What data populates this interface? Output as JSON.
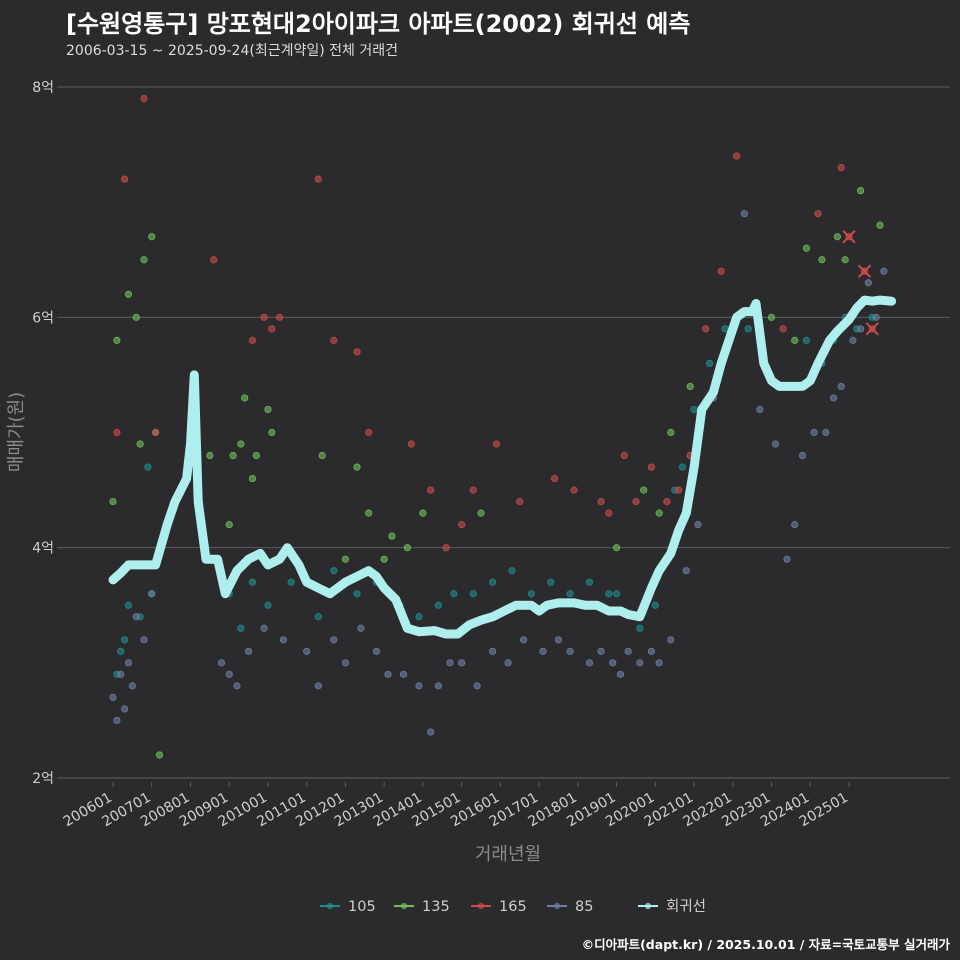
{
  "title": "[수원영통구] 망포현대2아이파크 아파트(2002) 회귀선 예측",
  "subtitle": "2006-03-15 ~ 2025-09-24(최근계약일) 전체 거래건",
  "caption": "©디아파트(dapt.kr) / 2025.10.01 / 자료=국토교통부 실거래가",
  "colors": {
    "background": "#2b2b2d",
    "grid": "#5d5d60",
    "s105": "#1f8d8d",
    "s135": "#6fbf5a",
    "s165": "#cc4b4b",
    "s85": "#6e7fa3",
    "regression": "#aeeeed"
  },
  "chart_data": {
    "type": "scatter",
    "xlabel": "거래년월",
    "ylabel": "매매가(원)",
    "ylim": [
      2,
      8
    ],
    "y_ticks": [
      {
        "value": 2,
        "label": "2억"
      },
      {
        "value": 4,
        "label": "4억"
      },
      {
        "value": 6,
        "label": "6억"
      },
      {
        "value": 8,
        "label": "8억"
      }
    ],
    "x_ticks": [
      "200601",
      "200701",
      "200801",
      "200901",
      "201001",
      "201101",
      "201201",
      "201301",
      "201401",
      "201501",
      "201601",
      "201701",
      "201801",
      "201901",
      "202001",
      "202101",
      "202201",
      "202301",
      "202401",
      "202501"
    ],
    "xlim": [
      2005.2,
      2026.8
    ],
    "legend": {
      "position": "bottom",
      "items": [
        {
          "label": "105",
          "color_key": "s105"
        },
        {
          "label": "135",
          "color_key": "s135"
        },
        {
          "label": "165",
          "color_key": "s165"
        },
        {
          "label": "85",
          "color_key": "s85"
        },
        {
          "label": "회귀선",
          "color_key": "regression"
        }
      ]
    },
    "series": [
      {
        "name": "105",
        "color_key": "s105",
        "points": [
          [
            2006.1,
            2.9
          ],
          [
            2006.2,
            3.1
          ],
          [
            2006.3,
            3.2
          ],
          [
            2006.4,
            3.5
          ],
          [
            2006.7,
            3.4
          ],
          [
            2006.9,
            4.7
          ],
          [
            2007.0,
            3.6
          ],
          [
            2009.0,
            3.6
          ],
          [
            2009.3,
            3.3
          ],
          [
            2009.6,
            3.7
          ],
          [
            2010.0,
            3.5
          ],
          [
            2010.6,
            3.7
          ],
          [
            2011.3,
            3.4
          ],
          [
            2011.7,
            3.8
          ],
          [
            2012.3,
            3.6
          ],
          [
            2012.8,
            3.7
          ],
          [
            2013.4,
            3.5
          ],
          [
            2013.9,
            3.4
          ],
          [
            2014.4,
            3.5
          ],
          [
            2014.8,
            3.6
          ],
          [
            2015.3,
            3.6
          ],
          [
            2015.8,
            3.7
          ],
          [
            2016.3,
            3.8
          ],
          [
            2016.8,
            3.6
          ],
          [
            2017.3,
            3.7
          ],
          [
            2017.8,
            3.6
          ],
          [
            2018.3,
            3.7
          ],
          [
            2018.8,
            3.6
          ],
          [
            2019.0,
            3.6
          ],
          [
            2019.6,
            3.3
          ],
          [
            2020.0,
            3.5
          ],
          [
            2020.1,
            3.8
          ],
          [
            2020.5,
            4.5
          ],
          [
            2020.7,
            4.7
          ],
          [
            2021.0,
            5.2
          ],
          [
            2021.4,
            5.6
          ],
          [
            2021.8,
            5.9
          ],
          [
            2022.4,
            5.9
          ],
          [
            2023.5,
            5.4
          ],
          [
            2023.9,
            5.8
          ],
          [
            2024.3,
            5.6
          ],
          [
            2024.6,
            5.8
          ],
          [
            2024.9,
            6.0
          ],
          [
            2025.2,
            5.9
          ],
          [
            2025.6,
            6.0
          ]
        ]
      },
      {
        "name": "135",
        "color_key": "s135",
        "points": [
          [
            2006.0,
            4.4
          ],
          [
            2006.1,
            5.8
          ],
          [
            2006.4,
            6.2
          ],
          [
            2006.6,
            6.0
          ],
          [
            2006.7,
            4.9
          ],
          [
            2006.8,
            6.5
          ],
          [
            2007.0,
            6.7
          ],
          [
            2007.1,
            5.0
          ],
          [
            2007.2,
            2.2
          ],
          [
            2008.5,
            4.8
          ],
          [
            2009.0,
            4.2
          ],
          [
            2009.1,
            4.8
          ],
          [
            2009.3,
            4.9
          ],
          [
            2009.4,
            5.3
          ],
          [
            2009.6,
            4.6
          ],
          [
            2009.7,
            4.8
          ],
          [
            2010.0,
            5.2
          ],
          [
            2010.1,
            5.0
          ],
          [
            2011.4,
            4.8
          ],
          [
            2012.0,
            3.9
          ],
          [
            2012.3,
            4.7
          ],
          [
            2012.6,
            4.3
          ],
          [
            2013.0,
            3.9
          ],
          [
            2013.2,
            4.1
          ],
          [
            2013.6,
            4.0
          ],
          [
            2014.0,
            4.3
          ],
          [
            2015.5,
            4.3
          ],
          [
            2019.0,
            4.0
          ],
          [
            2019.7,
            4.5
          ],
          [
            2020.1,
            4.3
          ],
          [
            2020.4,
            5.0
          ],
          [
            2020.9,
            5.4
          ],
          [
            2021.7,
            5.6
          ],
          [
            2023.0,
            6.0
          ],
          [
            2023.6,
            5.8
          ],
          [
            2023.9,
            6.6
          ],
          [
            2024.3,
            6.5
          ],
          [
            2024.7,
            6.7
          ],
          [
            2024.9,
            6.5
          ],
          [
            2025.3,
            7.1
          ],
          [
            2025.8,
            6.8
          ]
        ]
      },
      {
        "name": "165",
        "color_key": "s165",
        "points": [
          [
            2006.3,
            7.2
          ],
          [
            2006.1,
            5.0
          ],
          [
            2006.8,
            7.9
          ],
          [
            2007.1,
            5.0
          ],
          [
            2008.6,
            6.5
          ],
          [
            2009.6,
            5.8
          ],
          [
            2009.9,
            6.0
          ],
          [
            2010.1,
            5.9
          ],
          [
            2010.3,
            6.0
          ],
          [
            2011.3,
            7.2
          ],
          [
            2011.7,
            5.8
          ],
          [
            2012.3,
            5.7
          ],
          [
            2012.6,
            5.0
          ],
          [
            2013.7,
            4.9
          ],
          [
            2014.2,
            4.5
          ],
          [
            2014.6,
            4.0
          ],
          [
            2015.0,
            4.2
          ],
          [
            2015.3,
            4.5
          ],
          [
            2015.9,
            4.9
          ],
          [
            2016.5,
            4.4
          ],
          [
            2017.4,
            4.6
          ],
          [
            2017.9,
            4.5
          ],
          [
            2018.6,
            4.4
          ],
          [
            2018.8,
            4.3
          ],
          [
            2019.2,
            4.8
          ],
          [
            2019.5,
            4.4
          ],
          [
            2019.9,
            4.7
          ],
          [
            2020.3,
            4.4
          ],
          [
            2020.6,
            4.5
          ],
          [
            2020.9,
            4.8
          ],
          [
            2021.3,
            5.9
          ],
          [
            2021.7,
            6.4
          ],
          [
            2022.1,
            7.4
          ],
          [
            2023.3,
            5.9
          ],
          [
            2024.2,
            6.9
          ],
          [
            2024.8,
            7.3
          ],
          [
            2025.0,
            6.7
          ],
          [
            2025.4,
            6.4
          ],
          [
            2025.6,
            5.9
          ]
        ]
      },
      {
        "name": "85",
        "color_key": "s85",
        "points": [
          [
            2006.0,
            2.7
          ],
          [
            2006.1,
            2.5
          ],
          [
            2006.2,
            2.9
          ],
          [
            2006.3,
            2.6
          ],
          [
            2006.4,
            3.0
          ],
          [
            2006.5,
            2.8
          ],
          [
            2006.6,
            3.4
          ],
          [
            2006.8,
            3.2
          ],
          [
            2007.0,
            3.6
          ],
          [
            2008.8,
            3.0
          ],
          [
            2009.0,
            2.9
          ],
          [
            2009.2,
            2.8
          ],
          [
            2009.5,
            3.1
          ],
          [
            2009.9,
            3.3
          ],
          [
            2010.4,
            3.2
          ],
          [
            2011.0,
            3.1
          ],
          [
            2011.3,
            2.8
          ],
          [
            2011.7,
            3.2
          ],
          [
            2012.0,
            3.0
          ],
          [
            2012.4,
            3.3
          ],
          [
            2012.8,
            3.1
          ],
          [
            2013.1,
            2.9
          ],
          [
            2013.5,
            2.9
          ],
          [
            2013.9,
            2.8
          ],
          [
            2014.2,
            2.4
          ],
          [
            2014.4,
            2.8
          ],
          [
            2014.7,
            3.0
          ],
          [
            2015.0,
            3.0
          ],
          [
            2015.4,
            2.8
          ],
          [
            2015.8,
            3.1
          ],
          [
            2016.2,
            3.0
          ],
          [
            2016.6,
            3.2
          ],
          [
            2017.1,
            3.1
          ],
          [
            2017.5,
            3.2
          ],
          [
            2017.8,
            3.1
          ],
          [
            2018.3,
            3.0
          ],
          [
            2018.6,
            3.1
          ],
          [
            2018.9,
            3.0
          ],
          [
            2019.1,
            2.9
          ],
          [
            2019.3,
            3.1
          ],
          [
            2019.6,
            3.0
          ],
          [
            2019.9,
            3.1
          ],
          [
            2020.1,
            3.0
          ],
          [
            2020.4,
            3.2
          ],
          [
            2020.8,
            3.8
          ],
          [
            2021.1,
            4.2
          ],
          [
            2021.5,
            5.3
          ],
          [
            2021.9,
            5.8
          ],
          [
            2022.3,
            6.9
          ],
          [
            2022.7,
            5.2
          ],
          [
            2023.1,
            4.9
          ],
          [
            2023.4,
            3.9
          ],
          [
            2023.6,
            4.2
          ],
          [
            2023.8,
            4.8
          ],
          [
            2024.1,
            5.0
          ],
          [
            2024.4,
            5.0
          ],
          [
            2024.6,
            5.3
          ],
          [
            2024.8,
            5.4
          ],
          [
            2025.1,
            5.8
          ],
          [
            2025.3,
            5.9
          ],
          [
            2025.5,
            6.3
          ],
          [
            2025.7,
            6.0
          ],
          [
            2025.9,
            6.4
          ]
        ]
      }
    ],
    "regression": {
      "name": "회귀선",
      "color_key": "regression",
      "points": [
        [
          2006.0,
          3.72
        ],
        [
          2006.2,
          3.78
        ],
        [
          2006.4,
          3.85
        ],
        [
          2006.8,
          3.85
        ],
        [
          2007.1,
          3.85
        ],
        [
          2007.4,
          4.2
        ],
        [
          2007.6,
          4.4
        ],
        [
          2007.9,
          4.6
        ],
        [
          2008.0,
          4.9
        ],
        [
          2008.1,
          5.5
        ],
        [
          2008.2,
          4.4
        ],
        [
          2008.4,
          3.9
        ],
        [
          2008.7,
          3.9
        ],
        [
          2008.9,
          3.6
        ],
        [
          2009.2,
          3.8
        ],
        [
          2009.5,
          3.9
        ],
        [
          2009.8,
          3.95
        ],
        [
          2010.0,
          3.85
        ],
        [
          2010.3,
          3.9
        ],
        [
          2010.5,
          4.0
        ],
        [
          2010.8,
          3.85
        ],
        [
          2011.0,
          3.7
        ],
        [
          2011.3,
          3.65
        ],
        [
          2011.6,
          3.6
        ],
        [
          2012.0,
          3.7
        ],
        [
          2012.3,
          3.75
        ],
        [
          2012.6,
          3.8
        ],
        [
          2012.8,
          3.75
        ],
        [
          2013.0,
          3.65
        ],
        [
          2013.3,
          3.55
        ],
        [
          2013.6,
          3.3
        ],
        [
          2013.9,
          3.27
        ],
        [
          2014.3,
          3.28
        ],
        [
          2014.6,
          3.25
        ],
        [
          2014.9,
          3.25
        ],
        [
          2015.2,
          3.33
        ],
        [
          2015.5,
          3.37
        ],
        [
          2015.8,
          3.4
        ],
        [
          2016.1,
          3.45
        ],
        [
          2016.4,
          3.5
        ],
        [
          2016.8,
          3.5
        ],
        [
          2017.0,
          3.45
        ],
        [
          2017.2,
          3.5
        ],
        [
          2017.5,
          3.52
        ],
        [
          2017.9,
          3.52
        ],
        [
          2018.2,
          3.5
        ],
        [
          2018.5,
          3.5
        ],
        [
          2018.8,
          3.45
        ],
        [
          2019.1,
          3.45
        ],
        [
          2019.3,
          3.42
        ],
        [
          2019.6,
          3.4
        ],
        [
          2019.9,
          3.65
        ],
        [
          2020.1,
          3.8
        ],
        [
          2020.4,
          3.95
        ],
        [
          2020.6,
          4.15
        ],
        [
          2020.8,
          4.3
        ],
        [
          2021.0,
          4.7
        ],
        [
          2021.2,
          5.2
        ],
        [
          2021.5,
          5.35
        ],
        [
          2021.7,
          5.6
        ],
        [
          2021.9,
          5.8
        ],
        [
          2022.1,
          6.0
        ],
        [
          2022.3,
          6.05
        ],
        [
          2022.5,
          6.05
        ],
        [
          2022.6,
          6.12
        ],
        [
          2022.8,
          5.6
        ],
        [
          2023.0,
          5.45
        ],
        [
          2023.2,
          5.4
        ],
        [
          2023.5,
          5.4
        ],
        [
          2023.8,
          5.4
        ],
        [
          2024.0,
          5.45
        ],
        [
          2024.2,
          5.6
        ],
        [
          2024.5,
          5.8
        ],
        [
          2024.7,
          5.88
        ],
        [
          2025.0,
          5.98
        ],
        [
          2025.2,
          6.08
        ],
        [
          2025.4,
          6.15
        ],
        [
          2025.6,
          6.14
        ],
        [
          2025.8,
          6.15
        ],
        [
          2026.1,
          6.14
        ]
      ]
    },
    "highlighted_points": [
      [
        2025.0,
        6.7
      ],
      [
        2025.4,
        6.4
      ],
      [
        2025.6,
        5.9
      ]
    ]
  }
}
